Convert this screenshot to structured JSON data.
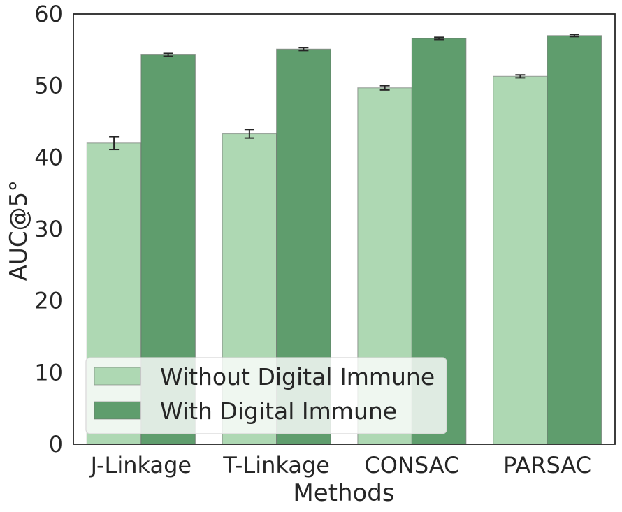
{
  "chart_data": {
    "type": "bar",
    "title": "",
    "xlabel": "Methods",
    "ylabel": "AUC@5°",
    "categories": [
      "J-Linkage",
      "T-Linkage",
      "CONSAC",
      "PARSAC"
    ],
    "ylim": [
      0,
      60
    ],
    "yticks": [
      "0",
      "10",
      "20",
      "30",
      "40",
      "50",
      "60"
    ],
    "grid": false,
    "legend_position": "lower-left",
    "series": [
      {
        "name": "Without Digital Immune",
        "color": "#aed8b3",
        "values": [
          42.0,
          43.3,
          49.7,
          51.3
        ],
        "errors": [
          0.9,
          0.6,
          0.3,
          0.2
        ]
      },
      {
        "name": "With Digital Immune",
        "color": "#5f9d6d",
        "values": [
          54.3,
          55.1,
          56.6,
          57.0
        ],
        "errors": [
          0.2,
          0.2,
          0.15,
          0.15
        ]
      }
    ]
  }
}
